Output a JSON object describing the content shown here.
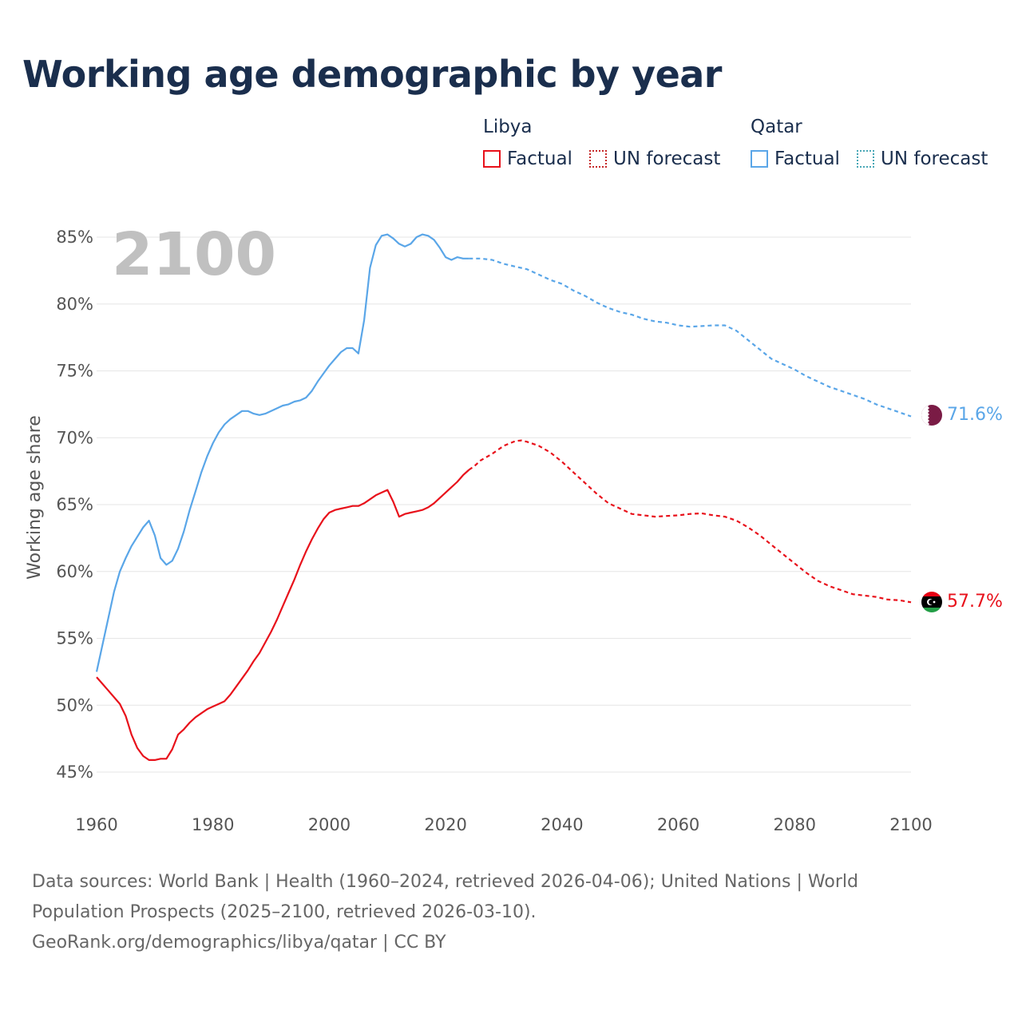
{
  "title": "Working age demographic by year",
  "legend": {
    "groups": [
      {
        "name": "Libya",
        "factual": "Factual",
        "forecast": "UN forecast",
        "color": "#e8111b"
      },
      {
        "name": "Qatar",
        "factual": "Factual",
        "forecast": "UN forecast",
        "color": "#5aa6e8"
      }
    ]
  },
  "year_label": "2100",
  "footer": {
    "line1": "Data sources: World Bank | Health (1960–2024, retrieved 2026-04-06); United Nations | World",
    "line2": "Population Prospects (2025–2100, retrieved 2026-03-10).",
    "line3": "GeoRank.org/demographics/libya/qatar | CC BY"
  },
  "chart_data": {
    "type": "line",
    "title": "Working age demographic by year",
    "xlabel": "",
    "ylabel": "Working age share",
    "xlim": [
      1960,
      2100
    ],
    "ylim": [
      45,
      85
    ],
    "xticks": [
      1960,
      1980,
      2000,
      2020,
      2040,
      2060,
      2080,
      2100
    ],
    "yticks": [
      45,
      50,
      55,
      60,
      65,
      70,
      75,
      80,
      85
    ],
    "ytick_labels": [
      "45%",
      "50%",
      "55%",
      "60%",
      "65%",
      "70%",
      "75%",
      "80%",
      "85%"
    ],
    "forecast_start": 2024,
    "series": [
      {
        "name": "Libya",
        "color": "#e8111b",
        "end_label": "57.7%",
        "points": [
          [
            1960,
            52.1
          ],
          [
            1962,
            51.1
          ],
          [
            1964,
            50.1
          ],
          [
            1965,
            49.2
          ],
          [
            1966,
            47.8
          ],
          [
            1967,
            46.8
          ],
          [
            1968,
            46.2
          ],
          [
            1969,
            45.9
          ],
          [
            1970,
            45.9
          ],
          [
            1971,
            46.0
          ],
          [
            1972,
            46.0
          ],
          [
            1973,
            46.7
          ],
          [
            1974,
            47.8
          ],
          [
            1975,
            48.2
          ],
          [
            1976,
            48.7
          ],
          [
            1977,
            49.1
          ],
          [
            1978,
            49.4
          ],
          [
            1979,
            49.7
          ],
          [
            1980,
            49.9
          ],
          [
            1981,
            50.1
          ],
          [
            1982,
            50.3
          ],
          [
            1983,
            50.8
          ],
          [
            1984,
            51.4
          ],
          [
            1985,
            52.0
          ],
          [
            1986,
            52.6
          ],
          [
            1987,
            53.3
          ],
          [
            1988,
            53.9
          ],
          [
            1989,
            54.7
          ],
          [
            1990,
            55.5
          ],
          [
            1991,
            56.4
          ],
          [
            1992,
            57.4
          ],
          [
            1993,
            58.4
          ],
          [
            1994,
            59.4
          ],
          [
            1995,
            60.5
          ],
          [
            1996,
            61.5
          ],
          [
            1997,
            62.4
          ],
          [
            1998,
            63.2
          ],
          [
            1999,
            63.9
          ],
          [
            2000,
            64.4
          ],
          [
            2001,
            64.6
          ],
          [
            2002,
            64.7
          ],
          [
            2003,
            64.8
          ],
          [
            2004,
            64.9
          ],
          [
            2005,
            64.9
          ],
          [
            2006,
            65.1
          ],
          [
            2007,
            65.4
          ],
          [
            2008,
            65.7
          ],
          [
            2009,
            65.9
          ],
          [
            2010,
            66.1
          ],
          [
            2011,
            65.2
          ],
          [
            2012,
            64.1
          ],
          [
            2013,
            64.3
          ],
          [
            2014,
            64.4
          ],
          [
            2015,
            64.5
          ],
          [
            2016,
            64.6
          ],
          [
            2017,
            64.8
          ],
          [
            2018,
            65.1
          ],
          [
            2019,
            65.5
          ],
          [
            2020,
            65.9
          ],
          [
            2021,
            66.3
          ],
          [
            2022,
            66.7
          ],
          [
            2023,
            67.2
          ],
          [
            2024,
            67.6
          ],
          [
            2025,
            67.9
          ],
          [
            2026,
            68.3
          ],
          [
            2028,
            68.8
          ],
          [
            2030,
            69.4
          ],
          [
            2032,
            69.75
          ],
          [
            2033,
            69.8
          ],
          [
            2034,
            69.7
          ],
          [
            2036,
            69.4
          ],
          [
            2038,
            68.9
          ],
          [
            2040,
            68.2
          ],
          [
            2042,
            67.4
          ],
          [
            2044,
            66.6
          ],
          [
            2046,
            65.8
          ],
          [
            2048,
            65.1
          ],
          [
            2050,
            64.7
          ],
          [
            2052,
            64.3
          ],
          [
            2054,
            64.2
          ],
          [
            2056,
            64.1
          ],
          [
            2058,
            64.15
          ],
          [
            2060,
            64.2
          ],
          [
            2062,
            64.3
          ],
          [
            2064,
            64.35
          ],
          [
            2066,
            64.2
          ],
          [
            2068,
            64.1
          ],
          [
            2070,
            63.8
          ],
          [
            2072,
            63.3
          ],
          [
            2074,
            62.7
          ],
          [
            2076,
            62.0
          ],
          [
            2078,
            61.3
          ],
          [
            2080,
            60.6
          ],
          [
            2082,
            59.9
          ],
          [
            2084,
            59.3
          ],
          [
            2086,
            58.9
          ],
          [
            2088,
            58.6
          ],
          [
            2090,
            58.3
          ],
          [
            2092,
            58.2
          ],
          [
            2094,
            58.1
          ],
          [
            2096,
            57.9
          ],
          [
            2098,
            57.85
          ],
          [
            2100,
            57.7
          ]
        ]
      },
      {
        "name": "Qatar",
        "color": "#5aa6e8",
        "end_label": "71.6%",
        "points": [
          [
            1960,
            52.5
          ],
          [
            1961,
            54.5
          ],
          [
            1962,
            56.5
          ],
          [
            1963,
            58.5
          ],
          [
            1964,
            60.0
          ],
          [
            1965,
            61.0
          ],
          [
            1966,
            61.9
          ],
          [
            1967,
            62.6
          ],
          [
            1968,
            63.3
          ],
          [
            1969,
            63.8
          ],
          [
            1970,
            62.7
          ],
          [
            1971,
            61.0
          ],
          [
            1972,
            60.5
          ],
          [
            1973,
            60.8
          ],
          [
            1974,
            61.7
          ],
          [
            1975,
            63.0
          ],
          [
            1976,
            64.6
          ],
          [
            1977,
            66.0
          ],
          [
            1978,
            67.4
          ],
          [
            1979,
            68.6
          ],
          [
            1980,
            69.6
          ],
          [
            1981,
            70.4
          ],
          [
            1982,
            71.0
          ],
          [
            1983,
            71.4
          ],
          [
            1984,
            71.7
          ],
          [
            1985,
            72.0
          ],
          [
            1986,
            72.0
          ],
          [
            1987,
            71.8
          ],
          [
            1988,
            71.7
          ],
          [
            1989,
            71.8
          ],
          [
            1990,
            72.0
          ],
          [
            1991,
            72.2
          ],
          [
            1992,
            72.4
          ],
          [
            1993,
            72.5
          ],
          [
            1994,
            72.7
          ],
          [
            1995,
            72.8
          ],
          [
            1996,
            73.0
          ],
          [
            1997,
            73.5
          ],
          [
            1998,
            74.2
          ],
          [
            1999,
            74.8
          ],
          [
            2000,
            75.4
          ],
          [
            2001,
            75.9
          ],
          [
            2002,
            76.4
          ],
          [
            2003,
            76.7
          ],
          [
            2004,
            76.7
          ],
          [
            2005,
            76.3
          ],
          [
            2006,
            78.8
          ],
          [
            2007,
            82.7
          ],
          [
            2008,
            84.4
          ],
          [
            2009,
            85.1
          ],
          [
            2010,
            85.2
          ],
          [
            2011,
            84.9
          ],
          [
            2012,
            84.5
          ],
          [
            2013,
            84.3
          ],
          [
            2014,
            84.5
          ],
          [
            2015,
            85.0
          ],
          [
            2016,
            85.2
          ],
          [
            2017,
            85.1
          ],
          [
            2018,
            84.8
          ],
          [
            2019,
            84.2
          ],
          [
            2020,
            83.5
          ],
          [
            2021,
            83.3
          ],
          [
            2022,
            83.5
          ],
          [
            2023,
            83.4
          ],
          [
            2024,
            83.4
          ],
          [
            2026,
            83.4
          ],
          [
            2028,
            83.3
          ],
          [
            2030,
            83.0
          ],
          [
            2032,
            82.8
          ],
          [
            2034,
            82.6
          ],
          [
            2036,
            82.2
          ],
          [
            2038,
            81.8
          ],
          [
            2040,
            81.5
          ],
          [
            2042,
            81.0
          ],
          [
            2044,
            80.6
          ],
          [
            2046,
            80.1
          ],
          [
            2048,
            79.7
          ],
          [
            2050,
            79.4
          ],
          [
            2052,
            79.2
          ],
          [
            2054,
            78.9
          ],
          [
            2056,
            78.7
          ],
          [
            2058,
            78.6
          ],
          [
            2060,
            78.4
          ],
          [
            2062,
            78.3
          ],
          [
            2064,
            78.35
          ],
          [
            2066,
            78.4
          ],
          [
            2068,
            78.4
          ],
          [
            2070,
            78.0
          ],
          [
            2072,
            77.3
          ],
          [
            2074,
            76.6
          ],
          [
            2076,
            75.9
          ],
          [
            2078,
            75.5
          ],
          [
            2080,
            75.1
          ],
          [
            2082,
            74.6
          ],
          [
            2084,
            74.2
          ],
          [
            2086,
            73.8
          ],
          [
            2088,
            73.5
          ],
          [
            2090,
            73.2
          ],
          [
            2092,
            72.9
          ],
          [
            2094,
            72.5
          ],
          [
            2096,
            72.2
          ],
          [
            2098,
            71.9
          ],
          [
            2100,
            71.6
          ]
        ]
      }
    ]
  }
}
